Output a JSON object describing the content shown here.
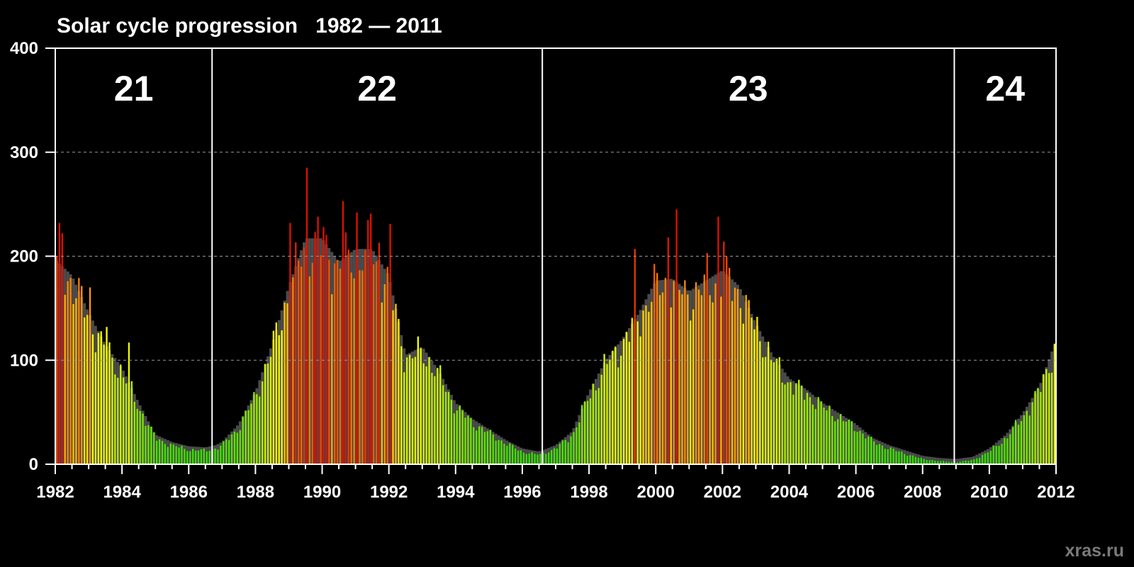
{
  "chart_data": {
    "type": "bar",
    "title": "Solar cycle progression   1982 — 2011",
    "xlabel": "",
    "ylabel": "",
    "xlim": [
      1982,
      2012
    ],
    "ylim": [
      0,
      400
    ],
    "x_ticks": [
      "1982",
      "1984",
      "1986",
      "1988",
      "1990",
      "1992",
      "1994",
      "1996",
      "1998",
      "2000",
      "2002",
      "2004",
      "2006",
      "2008",
      "2010",
      "2012"
    ],
    "y_ticks": [
      "0",
      "100",
      "200",
      "300",
      "400"
    ],
    "grid": {
      "horizontal_dashed": true,
      "lines_at": [
        100,
        200,
        300
      ]
    },
    "cycles": [
      {
        "label": "21",
        "start": 1982.0,
        "end": 1986.7
      },
      {
        "label": "22",
        "start": 1986.7,
        "end": 1996.6
      },
      {
        "label": "23",
        "start": 1996.6,
        "end": 2008.95
      },
      {
        "label": "24",
        "start": 2008.95,
        "end": 2012.0
      }
    ],
    "series": [
      {
        "kind": "monthly-sunspot-number",
        "color_scale": [
          "#22dd00",
          "#ffff00",
          "#ff8800",
          "#dd1100"
        ]
      },
      {
        "kind": "smoothed-sunspot-number",
        "color": "#4a4a4a"
      }
    ],
    "anchors": [
      [
        1982.0,
        190
      ],
      [
        1982.5,
        175
      ],
      [
        1983.0,
        140
      ],
      [
        1983.5,
        110
      ],
      [
        1984.0,
        88
      ],
      [
        1984.5,
        55
      ],
      [
        1985.0,
        25
      ],
      [
        1985.5,
        18
      ],
      [
        1986.0,
        14
      ],
      [
        1986.5,
        13
      ],
      [
        1986.8,
        15
      ],
      [
        1987.0,
        18
      ],
      [
        1987.5,
        35
      ],
      [
        1988.0,
        65
      ],
      [
        1988.5,
        110
      ],
      [
        1989.0,
        165
      ],
      [
        1989.5,
        210
      ],
      [
        1990.0,
        210
      ],
      [
        1990.5,
        188
      ],
      [
        1991.0,
        200
      ],
      [
        1991.5,
        200
      ],
      [
        1992.0,
        175
      ],
      [
        1992.5,
        100
      ],
      [
        1993.0,
        108
      ],
      [
        1993.5,
        85
      ],
      [
        1994.0,
        55
      ],
      [
        1994.5,
        40
      ],
      [
        1995.0,
        30
      ],
      [
        1995.5,
        20
      ],
      [
        1996.0,
        12
      ],
      [
        1996.5,
        9
      ],
      [
        1997.0,
        15
      ],
      [
        1997.5,
        28
      ],
      [
        1998.0,
        65
      ],
      [
        1998.5,
        95
      ],
      [
        1999.0,
        115
      ],
      [
        1999.5,
        140
      ],
      [
        2000.0,
        170
      ],
      [
        2000.5,
        172
      ],
      [
        2001.0,
        160
      ],
      [
        2001.5,
        170
      ],
      [
        2002.0,
        180
      ],
      [
        2002.5,
        165
      ],
      [
        2003.0,
        130
      ],
      [
        2003.5,
        100
      ],
      [
        2004.0,
        78
      ],
      [
        2004.5,
        68
      ],
      [
        2005.0,
        55
      ],
      [
        2005.5,
        45
      ],
      [
        2006.0,
        35
      ],
      [
        2006.5,
        22
      ],
      [
        2007.0,
        15
      ],
      [
        2007.5,
        10
      ],
      [
        2008.0,
        5
      ],
      [
        2008.5,
        3
      ],
      [
        2009.0,
        2
      ],
      [
        2009.5,
        4
      ],
      [
        2010.0,
        12
      ],
      [
        2010.5,
        25
      ],
      [
        2011.0,
        45
      ],
      [
        2011.5,
        70
      ],
      [
        2011.95,
        110
      ]
    ],
    "spikes": [
      [
        1982.1,
        232
      ],
      [
        1982.2,
        222
      ],
      [
        1983.0,
        170
      ],
      [
        1983.5,
        132
      ],
      [
        1984.2,
        117
      ],
      [
        1989.0,
        232
      ],
      [
        1989.5,
        285
      ],
      [
        1989.8,
        238
      ],
      [
        1990.0,
        228
      ],
      [
        1990.6,
        253
      ],
      [
        1991.0,
        242
      ],
      [
        1991.4,
        241
      ],
      [
        1991.7,
        213
      ],
      [
        1992.0,
        231
      ],
      [
        1999.3,
        207
      ],
      [
        2000.3,
        218
      ],
      [
        2000.6,
        245
      ],
      [
        2001.5,
        203
      ],
      [
        2001.8,
        238
      ],
      [
        2002.0,
        214
      ]
    ]
  },
  "watermark": "xras.ru"
}
